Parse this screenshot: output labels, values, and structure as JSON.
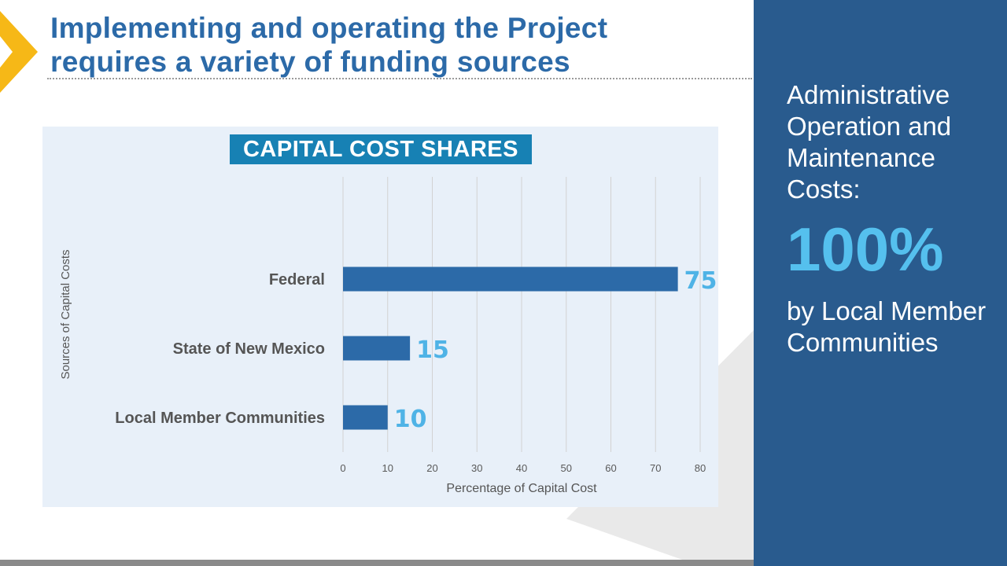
{
  "header": {
    "title_line1": "Implementing and operating the Project",
    "title_line2": "requires a variety of funding sources"
  },
  "chart_data": {
    "type": "bar",
    "orientation": "horizontal",
    "title": "CAPITAL COST SHARES",
    "categories": [
      "Federal",
      "State of New Mexico",
      "Local Member Communities"
    ],
    "values": [
      75,
      15,
      10
    ],
    "xlabel": "Percentage of Capital Cost",
    "ylabel": "Sources of Capital Costs",
    "xlim": [
      0,
      80
    ],
    "xticks": [
      0,
      10,
      20,
      30,
      40,
      50,
      60,
      70,
      80
    ],
    "grid": true,
    "legend": "none",
    "bar_color": "#2c6aa8",
    "label_color": "#4fb3e6"
  },
  "sidebar": {
    "heading": "Administrative Operation and Maintenance Costs:",
    "value": "100%",
    "subtext": "by Local Member Communities"
  },
  "colors": {
    "title": "#2c6aa8",
    "panel": "#295b8e",
    "accent": "#55c0ee",
    "chevron": "#f6b817"
  }
}
